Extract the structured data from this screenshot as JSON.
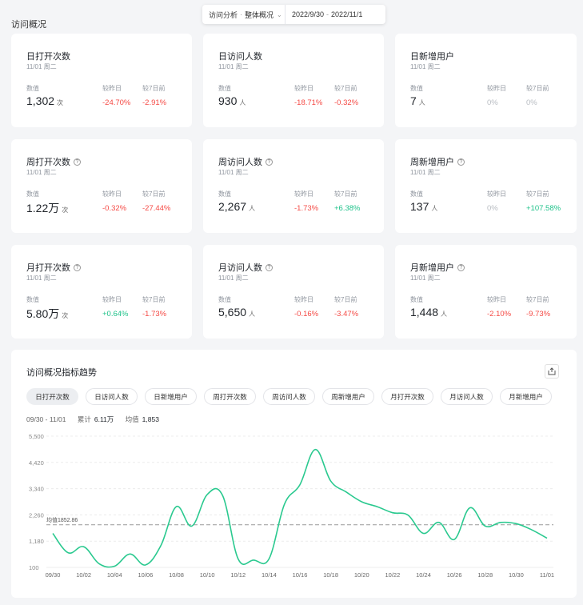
{
  "topbar": {
    "analysis_label": "访问分析",
    "separator": "·",
    "view_label": "整体概况",
    "date_start": "2022/9/30",
    "date_separator": "-",
    "date_end": "2022/11/1"
  },
  "section_title": "访问概况",
  "card_labels": {
    "value": "数值",
    "vs_yesterday": "较昨日",
    "vs_7days": "较7日前"
  },
  "cards": [
    {
      "title": "日打开次数",
      "date": "11/01 周二",
      "value": "1,302",
      "unit": "次",
      "d1": "-24.70%",
      "d7": "-2.91%",
      "d1c": "red",
      "d7c": "red",
      "help": false
    },
    {
      "title": "日访问人数",
      "date": "11/01 周二",
      "value": "930",
      "unit": "人",
      "d1": "-18.71%",
      "d7": "-0.32%",
      "d1c": "red",
      "d7c": "red",
      "help": false
    },
    {
      "title": "日新增用户",
      "date": "11/01 周二",
      "value": "7",
      "unit": "人",
      "d1": "0%",
      "d7": "0%",
      "d1c": "gray",
      "d7c": "gray",
      "help": false
    },
    {
      "title": "周打开次数",
      "date": "11/01 周二",
      "value": "1.22万",
      "unit": "次",
      "d1": "-0.32%",
      "d7": "-27.44%",
      "d1c": "red",
      "d7c": "red",
      "help": true
    },
    {
      "title": "周访问人数",
      "date": "11/01 周二",
      "value": "2,267",
      "unit": "人",
      "d1": "-1.73%",
      "d7": "+6.38%",
      "d1c": "red",
      "d7c": "green",
      "help": true
    },
    {
      "title": "周新增用户",
      "date": "11/01 周二",
      "value": "137",
      "unit": "人",
      "d1": "0%",
      "d7": "+107.58%",
      "d1c": "gray",
      "d7c": "green",
      "help": true
    },
    {
      "title": "月打开次数",
      "date": "11/01 周二",
      "value": "5.80万",
      "unit": "次",
      "d1": "+0.64%",
      "d7": "-1.73%",
      "d1c": "green",
      "d7c": "red",
      "help": true
    },
    {
      "title": "月访问人数",
      "date": "11/01 周二",
      "value": "5,650",
      "unit": "人",
      "d1": "-0.16%",
      "d7": "-3.47%",
      "d1c": "red",
      "d7c": "red",
      "help": true
    },
    {
      "title": "月新增用户",
      "date": "11/01 周二",
      "value": "1,448",
      "unit": "人",
      "d1": "-2.10%",
      "d7": "-9.73%",
      "d1c": "red",
      "d7c": "red",
      "help": true
    }
  ],
  "trend": {
    "title": "访问概况指标趋势",
    "export_icon": "export-icon",
    "tabs": [
      "日打开次数",
      "日访问人数",
      "日新增用户",
      "周打开次数",
      "周访问人数",
      "周新增用户",
      "月打开次数",
      "月访问人数",
      "月新增用户"
    ],
    "active_tab": 0,
    "range": "09/30 - 11/01",
    "total_label": "累计",
    "total_value": "6.11万",
    "avg_label": "均值",
    "avg_value": "1,853"
  },
  "chart_data": {
    "type": "line",
    "x": [
      "09/30",
      "10/01",
      "10/02",
      "10/03",
      "10/04",
      "10/05",
      "10/06",
      "10/07",
      "10/08",
      "10/09",
      "10/10",
      "10/11",
      "10/12",
      "10/13",
      "10/14",
      "10/15",
      "10/16",
      "10/17",
      "10/18",
      "10/19",
      "10/20",
      "10/21",
      "10/22",
      "10/23",
      "10/24",
      "10/25",
      "10/26",
      "10/27",
      "10/28",
      "10/29",
      "10/30",
      "10/31",
      "11/01"
    ],
    "x_tick_labels": [
      "09/30",
      "10/02",
      "10/04",
      "10/06",
      "10/08",
      "10/10",
      "10/12",
      "10/14",
      "10/16",
      "10/18",
      "10/20",
      "10/22",
      "10/24",
      "10/26",
      "10/28",
      "10/30",
      "11/01"
    ],
    "series": [
      {
        "values": [
          1500,
          700,
          950,
          250,
          150,
          650,
          200,
          1000,
          2600,
          1800,
          3100,
          3050,
          450,
          400,
          450,
          2700,
          3500,
          4950,
          3650,
          3200,
          2800,
          2600,
          2350,
          2250,
          1500,
          1950,
          1250,
          2550,
          1800,
          1950,
          1900,
          1650,
          1302
        ]
      }
    ],
    "y_ticks": [
      100,
      1180,
      2260,
      3340,
      4420,
      5500
    ],
    "y_tick_labels": [
      "100",
      "1,180",
      "2,260",
      "3,340",
      "4,420",
      "5,500"
    ],
    "ylim": [
      100,
      5500
    ],
    "reference_line": {
      "value": 1852.86,
      "label": "均值1852.86"
    },
    "grid": true,
    "color": "#2ac98f"
  }
}
